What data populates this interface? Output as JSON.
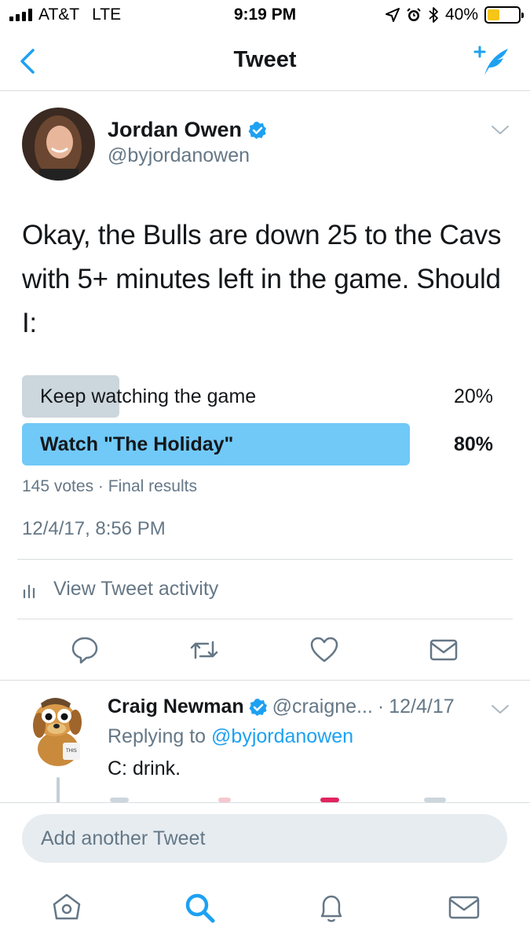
{
  "status_bar": {
    "carrier": "AT&T",
    "network": "LTE",
    "time": "9:19 PM",
    "battery_percent": "40%",
    "battery_level": 0.4,
    "icons": [
      "signal-icon",
      "location-icon",
      "alarm-icon",
      "bluetooth-icon",
      "battery-icon"
    ]
  },
  "nav": {
    "title": "Tweet",
    "back_icon": "chevron-left-icon",
    "compose_icon": "compose-tweet-icon"
  },
  "tweet": {
    "author_name": "Jordan Owen",
    "author_handle": "@byjordanowen",
    "verified": true,
    "text": "Okay, the Bulls are down 25 to the Cavs with 5+ minutes left in the game. Should I:",
    "poll": {
      "options": [
        {
          "label": "Keep watching the game",
          "percent_label": "20%",
          "value": 0.2,
          "winner": false
        },
        {
          "label": "Watch \"The Holiday\"",
          "percent_label": "80%",
          "value": 0.8,
          "winner": true
        }
      ],
      "votes": "145 votes",
      "separator": "·",
      "status": "Final results"
    },
    "timestamp": "12/4/17, 8:56 PM",
    "activity_label": "View Tweet activity",
    "actions": [
      "reply-icon",
      "retweet-icon",
      "like-icon",
      "direct-message-icon"
    ]
  },
  "reply": {
    "author_name": "Craig Newman",
    "author_handle": "@craigne...",
    "separator": "·",
    "date": "12/4/17",
    "replying_prefix": "Replying to",
    "replying_to": "@byjordanowen",
    "text": "C: drink."
  },
  "compose": {
    "placeholder": "Add another Tweet"
  },
  "tab_bar": {
    "tabs": [
      "home-icon",
      "search-icon",
      "notifications-icon",
      "messages-icon"
    ],
    "active": "search-icon"
  },
  "colors": {
    "brand_blue": "#1da1f2",
    "poll_winner": "#71c9f8",
    "poll_other": "#ccd6dd",
    "secondary_text": "#657786",
    "battery_fill": "#f5c518"
  }
}
